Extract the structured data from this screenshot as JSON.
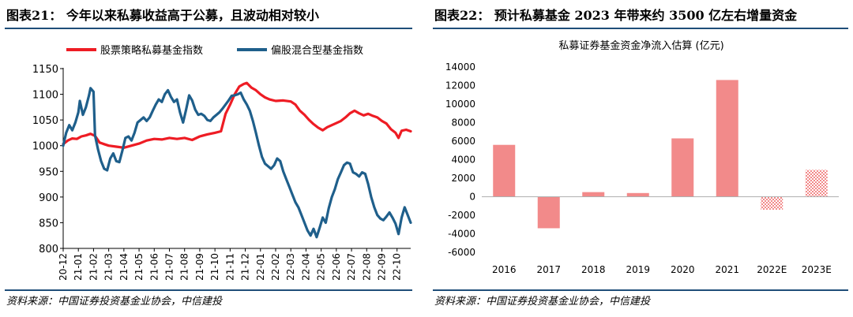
{
  "left_panel": {
    "title": "图表21： 今年以来私募收益高于公募，且波动相对较小",
    "source": "资料来源：中国证券投资基金业协会，中信建投"
  },
  "right_panel": {
    "title": "图表22： 预计私募基金 2023 年带来约 3500 亿左右增量资金",
    "source": "资料来源：中国证券投资基金业协会，中信建投"
  },
  "colors": {
    "red": "#ee1c24",
    "blue": "#1f5f8b",
    "bar": "#f28a8a",
    "rule": "#1f4e79"
  },
  "chart_data": [
    {
      "type": "line",
      "title": "",
      "xlabel": "",
      "ylabel": "",
      "ylim": [
        800,
        1150
      ],
      "yticks": [
        800,
        850,
        900,
        950,
        1000,
        1050,
        1100,
        1150
      ],
      "x_ticks": [
        "20-12",
        "21-01",
        "21-02",
        "21-03",
        "21-04",
        "21-05",
        "21-06",
        "21-07",
        "21-08",
        "21-09",
        "21-10",
        "21-11",
        "21-12",
        "22-01",
        "22-02",
        "22-03",
        "22-04",
        "22-05",
        "22-06",
        "22-07",
        "22-08",
        "22-09",
        "22-10"
      ],
      "x_range": [
        0,
        22.9
      ],
      "legend": "top",
      "series": [
        {
          "name": "股票策略私募基金指数",
          "color": "#ee1c24",
          "points": [
            [
              0,
              1003
            ],
            [
              0.3,
              1010
            ],
            [
              0.6,
              1014
            ],
            [
              0.9,
              1013
            ],
            [
              1.2,
              1018
            ],
            [
              1.5,
              1020
            ],
            [
              1.8,
              1023
            ],
            [
              2.1,
              1019
            ],
            [
              2.4,
              1006
            ],
            [
              2.7,
              1003
            ],
            [
              3.0,
              1000
            ],
            [
              3.5,
              998
            ],
            [
              4.0,
              996
            ],
            [
              4.5,
              1000
            ],
            [
              5.0,
              1004
            ],
            [
              5.5,
              1010
            ],
            [
              6.0,
              1013
            ],
            [
              6.5,
              1012
            ],
            [
              7.0,
              1015
            ],
            [
              7.5,
              1013
            ],
            [
              8.0,
              1015
            ],
            [
              8.5,
              1011
            ],
            [
              9.0,
              1018
            ],
            [
              9.5,
              1022
            ],
            [
              10.0,
              1025
            ],
            [
              10.4,
              1028
            ],
            [
              10.7,
              1062
            ],
            [
              11.0,
              1080
            ],
            [
              11.3,
              1100
            ],
            [
              11.6,
              1115
            ],
            [
              11.9,
              1120
            ],
            [
              12.1,
              1122
            ],
            [
              12.4,
              1113
            ],
            [
              12.7,
              1108
            ],
            [
              13.0,
              1100
            ],
            [
              13.3,
              1094
            ],
            [
              13.6,
              1090
            ],
            [
              14.0,
              1087
            ],
            [
              14.5,
              1088
            ],
            [
              15.0,
              1086
            ],
            [
              15.3,
              1080
            ],
            [
              15.6,
              1068
            ],
            [
              15.9,
              1060
            ],
            [
              16.2,
              1050
            ],
            [
              16.5,
              1042
            ],
            [
              16.8,
              1035
            ],
            [
              17.1,
              1030
            ],
            [
              17.4,
              1036
            ],
            [
              17.7,
              1040
            ],
            [
              18.0,
              1044
            ],
            [
              18.3,
              1048
            ],
            [
              18.6,
              1055
            ],
            [
              18.9,
              1063
            ],
            [
              19.2,
              1068
            ],
            [
              19.5,
              1063
            ],
            [
              19.8,
              1059
            ],
            [
              20.1,
              1062
            ],
            [
              20.4,
              1058
            ],
            [
              20.7,
              1055
            ],
            [
              21.0,
              1048
            ],
            [
              21.3,
              1043
            ],
            [
              21.6,
              1032
            ],
            [
              21.9,
              1025
            ],
            [
              22.1,
              1015
            ],
            [
              22.3,
              1029
            ],
            [
              22.6,
              1031
            ],
            [
              22.9,
              1028
            ]
          ]
        },
        {
          "name": "偏股混合型基金指数",
          "color": "#1f5f8b",
          "points": [
            [
              0,
              1000
            ],
            [
              0.2,
              1025
            ],
            [
              0.4,
              1040
            ],
            [
              0.6,
              1030
            ],
            [
              0.8,
              1045
            ],
            [
              1.0,
              1065
            ],
            [
              1.1,
              1087
            ],
            [
              1.3,
              1060
            ],
            [
              1.5,
              1075
            ],
            [
              1.7,
              1098
            ],
            [
              1.8,
              1112
            ],
            [
              2.0,
              1105
            ],
            [
              2.1,
              1020
            ],
            [
              2.3,
              992
            ],
            [
              2.5,
              970
            ],
            [
              2.7,
              955
            ],
            [
              2.9,
              952
            ],
            [
              3.1,
              975
            ],
            [
              3.3,
              985
            ],
            [
              3.5,
              970
            ],
            [
              3.7,
              968
            ],
            [
              3.9,
              990
            ],
            [
              4.1,
              1015
            ],
            [
              4.3,
              1018
            ],
            [
              4.5,
              1010
            ],
            [
              4.7,
              1025
            ],
            [
              4.9,
              1045
            ],
            [
              5.1,
              1050
            ],
            [
              5.3,
              1055
            ],
            [
              5.5,
              1048
            ],
            [
              5.7,
              1055
            ],
            [
              5.9,
              1068
            ],
            [
              6.1,
              1080
            ],
            [
              6.3,
              1090
            ],
            [
              6.5,
              1085
            ],
            [
              6.7,
              1100
            ],
            [
              6.9,
              1108
            ],
            [
              7.1,
              1095
            ],
            [
              7.3,
              1085
            ],
            [
              7.5,
              1090
            ],
            [
              7.7,
              1065
            ],
            [
              7.9,
              1045
            ],
            [
              8.1,
              1070
            ],
            [
              8.3,
              1098
            ],
            [
              8.5,
              1088
            ],
            [
              8.7,
              1070
            ],
            [
              8.9,
              1060
            ],
            [
              9.1,
              1062
            ],
            [
              9.3,
              1058
            ],
            [
              9.5,
              1050
            ],
            [
              9.7,
              1048
            ],
            [
              9.9,
              1055
            ],
            [
              10.1,
              1060
            ],
            [
              10.3,
              1065
            ],
            [
              10.5,
              1072
            ],
            [
              10.7,
              1080
            ],
            [
              10.9,
              1088
            ],
            [
              11.1,
              1097
            ],
            [
              11.3,
              1098
            ],
            [
              11.5,
              1100
            ],
            [
              11.7,
              1103
            ],
            [
              11.9,
              1090
            ],
            [
              12.1,
              1080
            ],
            [
              12.3,
              1068
            ],
            [
              12.5,
              1048
            ],
            [
              12.7,
              1025
            ],
            [
              12.9,
              1000
            ],
            [
              13.1,
              978
            ],
            [
              13.3,
              965
            ],
            [
              13.5,
              960
            ],
            [
              13.7,
              955
            ],
            [
              13.9,
              962
            ],
            [
              14.1,
              975
            ],
            [
              14.3,
              970
            ],
            [
              14.5,
              950
            ],
            [
              14.7,
              935
            ],
            [
              14.9,
              920
            ],
            [
              15.1,
              905
            ],
            [
              15.3,
              890
            ],
            [
              15.5,
              880
            ],
            [
              15.7,
              865
            ],
            [
              15.9,
              850
            ],
            [
              16.1,
              835
            ],
            [
              16.3,
              825
            ],
            [
              16.5,
              838
            ],
            [
              16.7,
              822
            ],
            [
              16.9,
              840
            ],
            [
              17.1,
              860
            ],
            [
              17.3,
              850
            ],
            [
              17.5,
              878
            ],
            [
              17.7,
              900
            ],
            [
              17.9,
              915
            ],
            [
              18.1,
              935
            ],
            [
              18.3,
              948
            ],
            [
              18.5,
              962
            ],
            [
              18.7,
              967
            ],
            [
              18.9,
              965
            ],
            [
              19.1,
              948
            ],
            [
              19.3,
              945
            ],
            [
              19.5,
              940
            ],
            [
              19.7,
              948
            ],
            [
              19.9,
              945
            ],
            [
              20.1,
              925
            ],
            [
              20.3,
              900
            ],
            [
              20.5,
              880
            ],
            [
              20.7,
              865
            ],
            [
              20.9,
              858
            ],
            [
              21.1,
              855
            ],
            [
              21.3,
              862
            ],
            [
              21.5,
              870
            ],
            [
              21.7,
              860
            ],
            [
              21.9,
              848
            ],
            [
              22.1,
              828
            ],
            [
              22.3,
              860
            ],
            [
              22.5,
              880
            ],
            [
              22.7,
              865
            ],
            [
              22.9,
              850
            ]
          ]
        }
      ]
    },
    {
      "type": "bar",
      "title": "私募证券基金资金净流入估算 (亿元)",
      "xlabel": "",
      "ylabel": "",
      "ylim": [
        -6000,
        14000
      ],
      "yticks": [
        -6000,
        -4000,
        -2000,
        0,
        2000,
        4000,
        6000,
        8000,
        10000,
        12000,
        14000
      ],
      "categories": [
        "2016",
        "2017",
        "2018",
        "2019",
        "2020",
        "2021",
        "2022E",
        "2023E"
      ],
      "values": [
        5600,
        -3400,
        500,
        400,
        6300,
        12600,
        -1400,
        2900
      ],
      "estimated": [
        false,
        false,
        false,
        false,
        false,
        false,
        true,
        true
      ]
    }
  ]
}
